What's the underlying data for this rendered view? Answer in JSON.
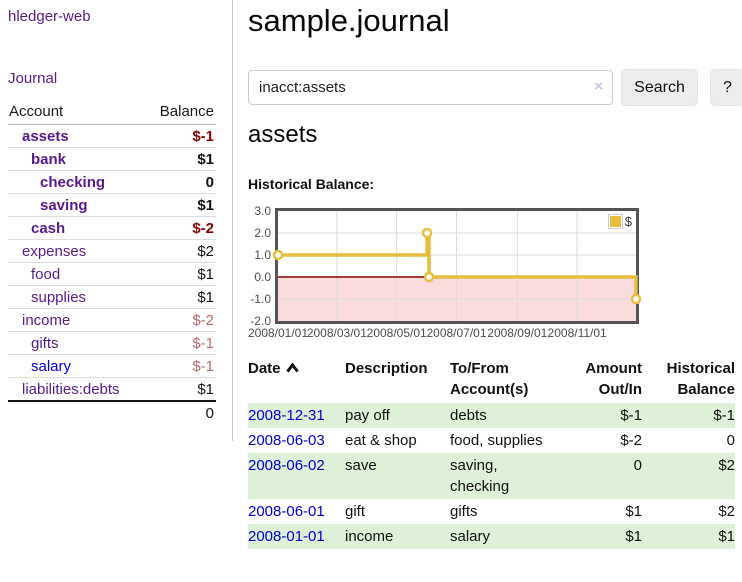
{
  "app_title": "hledger-web",
  "sidebar": {
    "journal_link": "Journal",
    "accounts_table": {
      "account_header": "Account",
      "balance_header": "Balance",
      "rows": [
        {
          "name": "assets",
          "depth": 1,
          "bold": true,
          "link_color": "purple",
          "balance": "$-1",
          "balance_style": "negative-strong"
        },
        {
          "name": "bank",
          "depth": 2,
          "bold": true,
          "link_color": "purple",
          "balance": "$1",
          "balance_style": "normal"
        },
        {
          "name": "checking",
          "depth": 3,
          "bold": true,
          "link_color": "purple",
          "balance": "0",
          "balance_style": "normal"
        },
        {
          "name": "saving",
          "depth": 3,
          "bold": true,
          "link_color": "purple",
          "balance": "$1",
          "balance_style": "normal"
        },
        {
          "name": "cash",
          "depth": 2,
          "bold": true,
          "link_color": "purple",
          "balance": "$-2",
          "balance_style": "negative-strong"
        },
        {
          "name": "expenses",
          "depth": 1,
          "bold": false,
          "link_color": "purple",
          "balance": "$2",
          "balance_style": "normal"
        },
        {
          "name": "food",
          "depth": 2,
          "bold": false,
          "link_color": "purple",
          "balance": "$1",
          "balance_style": "normal"
        },
        {
          "name": "supplies",
          "depth": 2,
          "bold": false,
          "link_color": "purple",
          "balance": "$1",
          "balance_style": "normal"
        },
        {
          "name": "income",
          "depth": 1,
          "bold": false,
          "link_color": "purple",
          "balance": "$-2",
          "balance_style": "negative-soft"
        },
        {
          "name": "gifts",
          "depth": 2,
          "bold": false,
          "link_color": "purple",
          "balance": "$-1",
          "balance_style": "negative-soft"
        },
        {
          "name": "salary",
          "depth": 2,
          "bold": false,
          "link_color": "blue",
          "balance": "$-1",
          "balance_style": "negative-soft"
        },
        {
          "name": "liabilities:debts",
          "depth": 1,
          "bold": false,
          "link_color": "purple",
          "balance": "$1",
          "balance_style": "normal"
        }
      ],
      "total": "0"
    }
  },
  "main": {
    "title": "sample.journal",
    "search": {
      "value": "inacct:assets",
      "clear_icon": "×",
      "search_button": "Search",
      "help_button": "?"
    },
    "account_heading": "assets",
    "section_label": "Historical Balance:"
  },
  "chart_data": {
    "type": "line",
    "step": true,
    "title": "Historical Balance:",
    "series": [
      {
        "name": "$",
        "color": "#e6bd3c",
        "points": [
          [
            "2008-01-01",
            1
          ],
          [
            "2008-06-01",
            2
          ],
          [
            "2008-06-03",
            0
          ],
          [
            "2008-12-31",
            -1
          ]
        ]
      }
    ],
    "xlim": [
      "2008-01-01",
      "2008-12-31"
    ],
    "ylim": [
      -2,
      3
    ],
    "x_tick_dates": [
      "2008-01-01",
      "2008-03-01",
      "2008-05-01",
      "2008-07-01",
      "2008-09-01",
      "2008-11-01"
    ],
    "x_tick_labels": [
      "2008/01/01",
      "2008/03/01",
      "2008/05/01",
      "2008/07/01",
      "2008/09/01",
      "2008/11/01"
    ],
    "y_ticks": [
      "3.0",
      "2.0",
      "1.0",
      "0.0",
      "-1.0",
      "-2.0"
    ],
    "grid": true,
    "legend": {
      "label": "$",
      "position": "top-right"
    },
    "negative_fill": "#fbdcdc",
    "zero_line_color": "#8b0000",
    "grid_color": "#dcdcdc"
  },
  "register": {
    "headers": {
      "date": "Date",
      "description": "Description",
      "tofrom": "To/From Account(s)",
      "amount": "Amount Out/In",
      "balance": "Historical Balance"
    },
    "sort_icon": "chevron-up",
    "rows": [
      {
        "date": "2008-12-31",
        "description": "pay off",
        "accounts": "debts",
        "amount": "$-1",
        "amount_negative": true,
        "balance": "$-1",
        "balance_negative": true,
        "highlight": true
      },
      {
        "date": "2008-06-03",
        "description": "eat & shop",
        "accounts": "food, supplies",
        "amount": "$-2",
        "amount_negative": true,
        "balance": "0",
        "balance_negative": false,
        "highlight": false
      },
      {
        "date": "2008-06-02",
        "description": "save",
        "accounts": "saving, checking",
        "amount": "0",
        "amount_negative": false,
        "balance": "$2",
        "balance_negative": false,
        "highlight": true
      },
      {
        "date": "2008-06-01",
        "description": "gift",
        "accounts": "gifts",
        "amount": "$1",
        "amount_negative": false,
        "balance": "$2",
        "balance_negative": false,
        "highlight": false
      },
      {
        "date": "2008-01-01",
        "description": "income",
        "accounts": "salary",
        "amount": "$1",
        "amount_negative": false,
        "balance": "$1",
        "balance_negative": false,
        "highlight": true
      }
    ]
  },
  "colors": {
    "link_visited": "#551a8b",
    "link_unvisited": "#0000dd",
    "date_link": "#0000cc",
    "negative_strong": "#8b0000",
    "negative_soft": "#b96a6a",
    "row_highlight": "#dff0d8",
    "series_gold": "#e6bd3c",
    "negative_region": "#fbdcdc"
  }
}
